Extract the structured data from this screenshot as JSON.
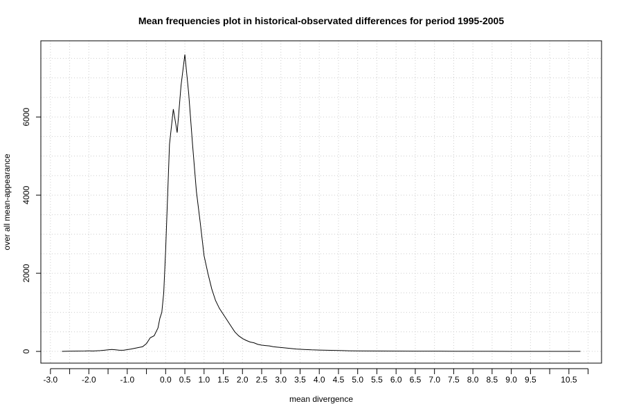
{
  "chart_data": {
    "type": "line",
    "title": "Mean frequencies plot in historical-observated differences for period 1995-2005",
    "xlabel": "mean divergence",
    "ylabel": "over all mean-appearance",
    "xlim": [
      -3.25,
      11.35
    ],
    "ylim": [
      -300,
      7950
    ],
    "grid": true,
    "x_tick_labels": [
      "-3.0",
      "-2.0",
      "-1.0",
      "0.0",
      "0.5",
      "1.0",
      "1.5",
      "2.0",
      "2.5",
      "3.0",
      "3.5",
      "4.0",
      "4.5",
      "5.0",
      "5.5",
      "6.0",
      "6.5",
      "7.0",
      "7.5",
      "8.0",
      "8.5",
      "9.0",
      "9.5",
      "10.5"
    ],
    "x_tick_values": [
      -3.0,
      -2.0,
      -1.0,
      0.0,
      0.5,
      1.0,
      1.5,
      2.0,
      2.5,
      3.0,
      3.5,
      4.0,
      4.5,
      5.0,
      5.5,
      6.0,
      6.5,
      7.0,
      7.5,
      8.0,
      8.5,
      9.0,
      9.5,
      10.5
    ],
    "x_unlabeled_ticks": [
      -2.5,
      -1.5,
      -0.5,
      10.0,
      11.0
    ],
    "y_tick_labels": [
      "0",
      "2000",
      "4000",
      "6000"
    ],
    "y_tick_values": [
      0,
      2000,
      4000,
      6000
    ],
    "grid_x": [
      -3.0,
      -2.5,
      -2.0,
      -1.5,
      -1.0,
      -0.5,
      0.0,
      0.5,
      1.0,
      1.5,
      2.0,
      2.5,
      3.0,
      3.5,
      4.0,
      4.5,
      5.0,
      5.5,
      6.0,
      6.5,
      7.0,
      7.5,
      8.0,
      8.5,
      9.0,
      9.5,
      10.0,
      10.5,
      11.0
    ],
    "grid_y": [
      0,
      500,
      1000,
      1500,
      2000,
      2500,
      3000,
      3500,
      4000,
      4500,
      5000,
      5500,
      6000,
      6500,
      7000,
      7500
    ],
    "series": [
      {
        "x": [
          -2.7,
          -2.5,
          -2.3,
          -2.1,
          -2.0,
          -1.9,
          -1.7,
          -1.6,
          -1.5,
          -1.4,
          -1.3,
          -1.2,
          -1.1,
          -1.0,
          -0.9,
          -0.8,
          -0.7,
          -0.6,
          -0.5,
          -0.4,
          -0.3,
          -0.2,
          -0.15,
          -0.1,
          -0.05,
          0.0,
          0.1,
          0.2,
          0.3,
          0.4,
          0.5,
          0.6,
          0.7,
          0.8,
          0.9,
          1.0,
          1.1,
          1.2,
          1.3,
          1.4,
          1.5,
          1.6,
          1.7,
          1.8,
          1.9,
          2.0,
          2.1,
          2.2,
          2.3,
          2.4,
          2.5,
          2.6,
          2.7,
          2.8,
          2.9,
          3.0,
          3.2,
          3.4,
          3.6,
          3.8,
          4.0,
          4.2,
          4.4,
          4.6,
          4.8,
          5.0,
          5.5,
          6.0,
          6.5,
          7.0,
          7.5,
          8.0,
          8.5,
          9.0,
          9.5,
          10.0,
          10.5,
          10.8
        ],
        "y": [
          0,
          5,
          8,
          10,
          15,
          10,
          20,
          30,
          40,
          50,
          40,
          30,
          30,
          45,
          60,
          80,
          100,
          120,
          200,
          350,
          400,
          600,
          850,
          1000,
          1500,
          2600,
          5300,
          6200,
          5600,
          6800,
          7600,
          6600,
          5300,
          4100,
          3300,
          2450,
          2000,
          1600,
          1300,
          1100,
          950,
          800,
          650,
          500,
          400,
          330,
          280,
          240,
          220,
          180,
          160,
          150,
          140,
          120,
          110,
          100,
          80,
          60,
          50,
          40,
          35,
          30,
          25,
          20,
          15,
          12,
          10,
          8,
          6,
          5,
          4,
          3,
          3,
          2,
          2,
          2,
          1,
          1
        ]
      }
    ]
  }
}
